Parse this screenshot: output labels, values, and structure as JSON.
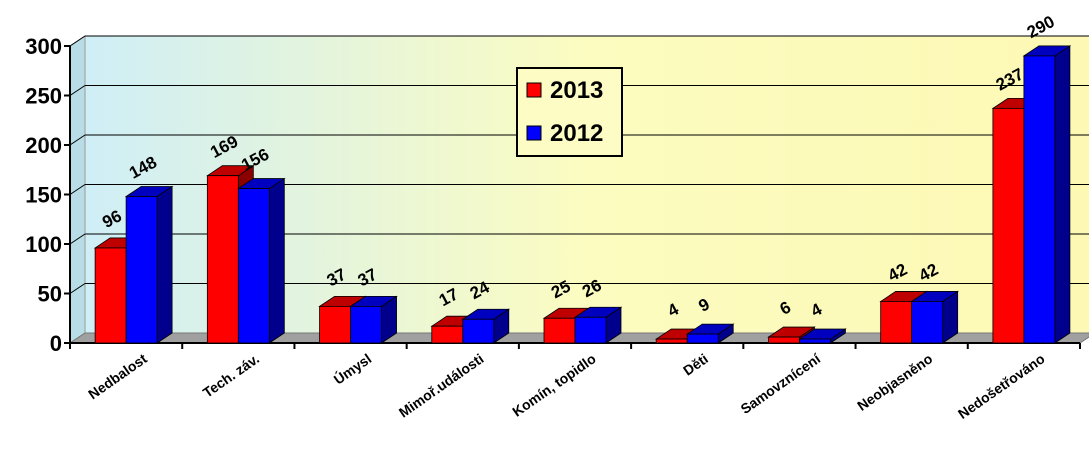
{
  "chart_data": {
    "type": "bar",
    "bar_style": "3d-clustered",
    "categories": [
      "Nedbalost",
      "Tech. záv.",
      "Úmysl",
      "Mimoř.události",
      "Komín, topidlo",
      "Děti",
      "Samovznícení",
      "Neobjasněno",
      "Nedošetřováno"
    ],
    "series": [
      {
        "name": "2013",
        "color": "#ff0000",
        "values": [
          96,
          169,
          37,
          17,
          25,
          4,
          6,
          42,
          237
        ]
      },
      {
        "name": "2012",
        "color": "#0000ff",
        "values": [
          148,
          156,
          37,
          24,
          26,
          9,
          4,
          42,
          290
        ]
      }
    ],
    "ylim": [
      0,
      300
    ],
    "yticks": [
      "0",
      "50",
      "100",
      "150",
      "200",
      "250",
      "300"
    ],
    "grid": true,
    "legend_position": "top-center",
    "title": "",
    "xlabel": "",
    "ylabel": "",
    "background_colors": [
      "#d6f0f6",
      "#fdfcc4"
    ]
  }
}
